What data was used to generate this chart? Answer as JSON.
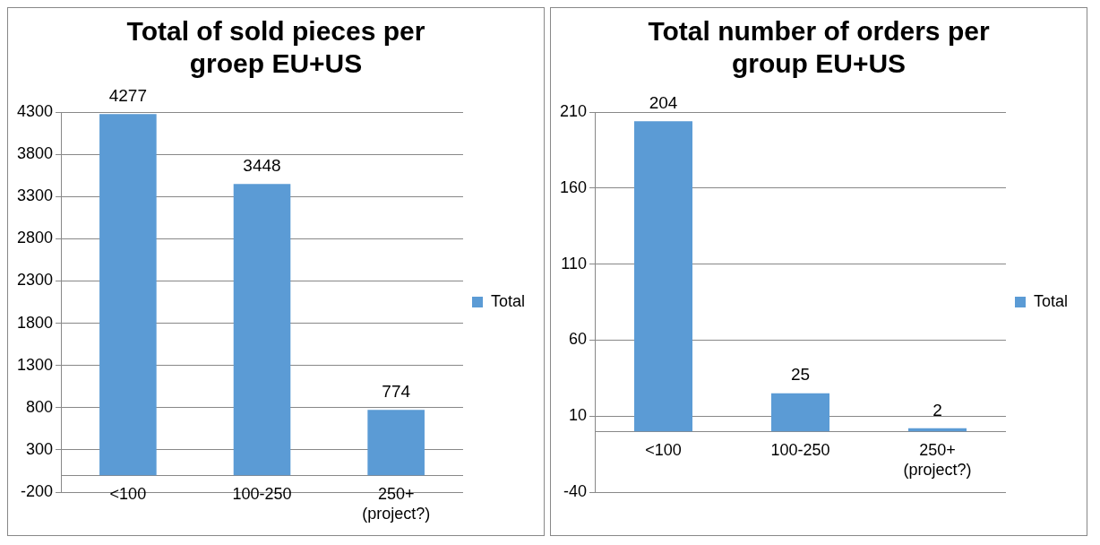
{
  "chart_data": [
    {
      "type": "bar",
      "title": "Total of sold pieces per groep EU+US",
      "categories": [
        "<100",
        "100-250",
        "250+ (project?)"
      ],
      "series": [
        {
          "name": "Total",
          "color": "#5b9bd5",
          "values": [
            4277,
            3448,
            774
          ]
        }
      ],
      "ylim": [
        -200,
        4300
      ],
      "yticks": [
        -200,
        300,
        800,
        1300,
        1800,
        2300,
        2800,
        3300,
        3800,
        4300
      ],
      "grid": "y",
      "legend": "right",
      "data_labels": true
    },
    {
      "type": "bar",
      "title": "Total number of orders per group EU+US",
      "categories": [
        "<100",
        "100-250",
        "250+ (project?)"
      ],
      "series": [
        {
          "name": "Total",
          "color": "#5b9bd5",
          "values": [
            204,
            25,
            2
          ]
        }
      ],
      "ylim": [
        -40,
        210
      ],
      "yticks": [
        -40,
        10,
        60,
        110,
        160,
        210
      ],
      "grid": "y",
      "legend": "right",
      "data_labels": true
    }
  ]
}
